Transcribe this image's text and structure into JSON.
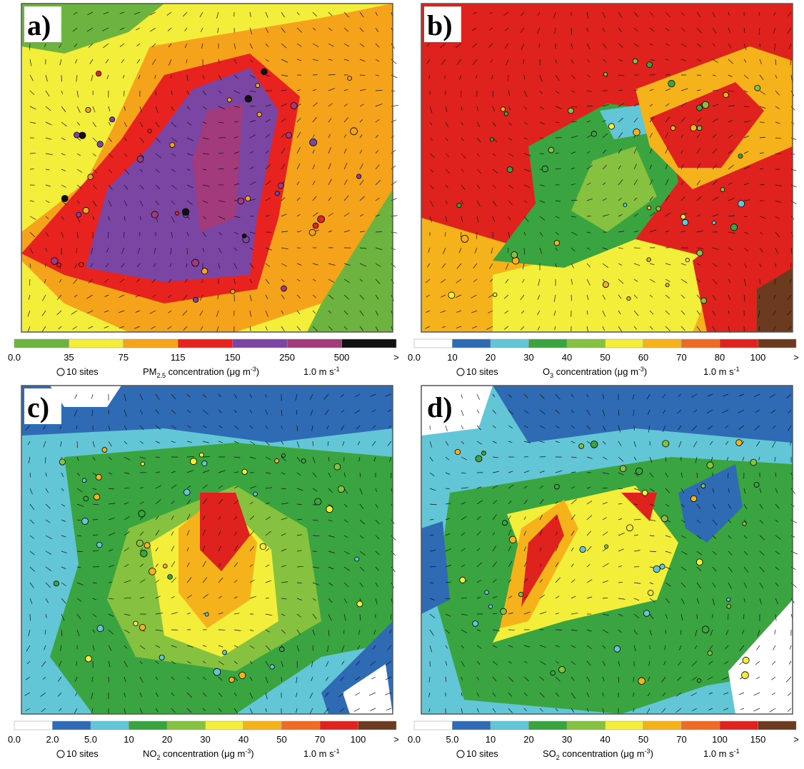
{
  "panels": [
    {
      "label": "a)",
      "colorbar": {
        "ticks": [
          "0.0",
          "35",
          "75",
          "115",
          "150",
          "250",
          "500",
          ">"
        ],
        "colors": [
          "#6cb33f",
          "#f2ee3a",
          "#f5a31a",
          "#e8231f",
          "#7a45a3",
          "#a23a7c",
          "#111111"
        ]
      },
      "legend": {
        "sites": "10 sites",
        "name": "PM",
        "sub": "2.5",
        "rest": " concentration (μg m",
        "sup": "-3",
        "end": ")",
        "wind": "1.0 m s",
        "wind_sup": "-1"
      }
    },
    {
      "label": "b)",
      "colorbar": {
        "ticks": [
          "0.0",
          "10",
          "20",
          "30",
          "40",
          "50",
          "60",
          "70",
          "80",
          "100",
          ">"
        ],
        "colors": [
          "#ffffff",
          "#2f6ab5",
          "#62c6d6",
          "#3aa441",
          "#86c23f",
          "#f2ee3a",
          "#f5b21a",
          "#ef6a22",
          "#e0221f",
          "#6b3a1f"
        ]
      },
      "legend": {
        "sites": "10 sites",
        "name": "O",
        "sub": "3",
        "rest": " concentration (μg m",
        "sup": "-3",
        "end": ")",
        "wind": "1.0 m s",
        "wind_sup": "-1"
      }
    },
    {
      "label": "c)",
      "colorbar": {
        "ticks": [
          "0.0",
          "2.0",
          "5.0",
          "10",
          "20",
          "30",
          "40",
          "50",
          "70",
          "100",
          ">"
        ],
        "colors": [
          "#ffffff",
          "#2f6ab5",
          "#62c6d6",
          "#3aa441",
          "#86c23f",
          "#f2ee3a",
          "#f5b21a",
          "#ef6a22",
          "#e0221f",
          "#6b3a1f"
        ]
      },
      "legend": {
        "sites": "10 sites",
        "name": "NO",
        "sub": "2",
        "rest": " concentration (μg m",
        "sup": "-3",
        "end": ")",
        "wind": "1.0 m s",
        "wind_sup": "-1"
      }
    },
    {
      "label": "d)",
      "colorbar": {
        "ticks": [
          "0.0",
          "5.0",
          "10",
          "20",
          "30",
          "40",
          "50",
          "70",
          "100",
          "150",
          ">"
        ],
        "colors": [
          "#ffffff",
          "#2f6ab5",
          "#62c6d6",
          "#3aa441",
          "#86c23f",
          "#f2ee3a",
          "#f5b21a",
          "#ef6a22",
          "#e0221f",
          "#6b3a1f"
        ]
      },
      "legend": {
        "sites": "10 sites",
        "name": "SO",
        "sub": "2",
        "rest": " concentration (μg m",
        "sup": "-3",
        "end": ")",
        "wind": "1.0 m s",
        "wind_sup": "-1"
      }
    }
  ]
}
